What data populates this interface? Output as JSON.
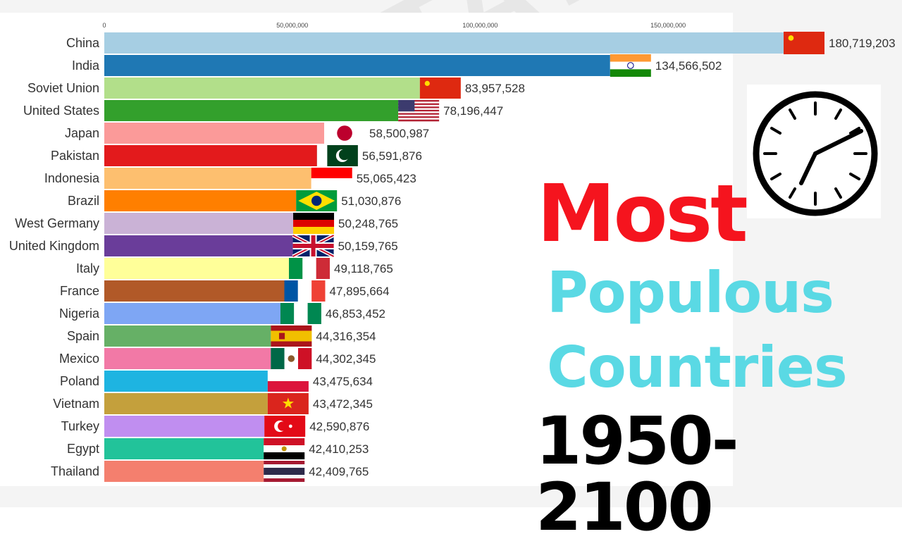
{
  "headline": {
    "line1": "Most",
    "line2": "Populous",
    "line3": "Countries",
    "line4": "1950-2100",
    "line1_color": "#f5141e",
    "line23_color": "#5ad9e4",
    "line4_color": "#000000"
  },
  "clock": {
    "icon": "clock-icon"
  },
  "chart_data": {
    "type": "bar",
    "orientation": "horizontal",
    "title": "",
    "xlabel": "",
    "ylabel": "",
    "xlim": [
      0,
      180719203
    ],
    "x_ticks": [
      0,
      50000000,
      100000000,
      150000000
    ],
    "x_tick_labels": [
      "0",
      "50,000,000",
      "100,000,000",
      "150,000,000"
    ],
    "grid": false,
    "legend": "none",
    "categories": [
      "China",
      "India",
      "Soviet Union",
      "United States",
      "Japan",
      "Pakistan",
      "Indonesia",
      "Brazil",
      "West Germany",
      "United Kingdom",
      "Italy",
      "France",
      "Nigeria",
      "Spain",
      "Mexico",
      "Poland",
      "Vietnam",
      "Turkey",
      "Egypt",
      "Thailand"
    ],
    "values": [
      180719203,
      134566502,
      83957528,
      78196447,
      58500987,
      56591876,
      55065423,
      51030876,
      50248765,
      50159765,
      49118765,
      47895664,
      46853452,
      44316354,
      44302345,
      43475634,
      43472345,
      42590876,
      42410253,
      42409765
    ],
    "value_labels": [
      "180,719,203",
      "134,566,502",
      "83,957,528",
      "78,196,447",
      "58,500,987",
      "56,591,876",
      "55,065,423",
      "51,030,876",
      "50,248,765",
      "50,159,765",
      "49,118,765",
      "47,895,664",
      "46,853,452",
      "44,316,354",
      "44,302,345",
      "43,475,634",
      "43,472,345",
      "42,590,876",
      "42,410,253",
      "42,409,765"
    ],
    "colors": [
      "#a6cee3",
      "#1f78b4",
      "#b2df8a",
      "#33a02c",
      "#fb9a99",
      "#e31a1c",
      "#fdbf6f",
      "#ff7f00",
      "#cab2d6",
      "#6a3d9a",
      "#ffff99",
      "#b15928",
      "#7ea6f4",
      "#66b066",
      "#f279a6",
      "#1eb4e1",
      "#c4a03c",
      "#c08ef0",
      "#22c39a",
      "#f47f6e"
    ],
    "flags": [
      "china",
      "india",
      "soviet-union",
      "usa",
      "japan",
      "pakistan",
      "indonesia",
      "brazil",
      "west-germany",
      "uk",
      "italy",
      "france",
      "nigeria",
      "spain",
      "mexico",
      "poland",
      "vietnam",
      "turkey",
      "egypt",
      "thailand"
    ]
  }
}
